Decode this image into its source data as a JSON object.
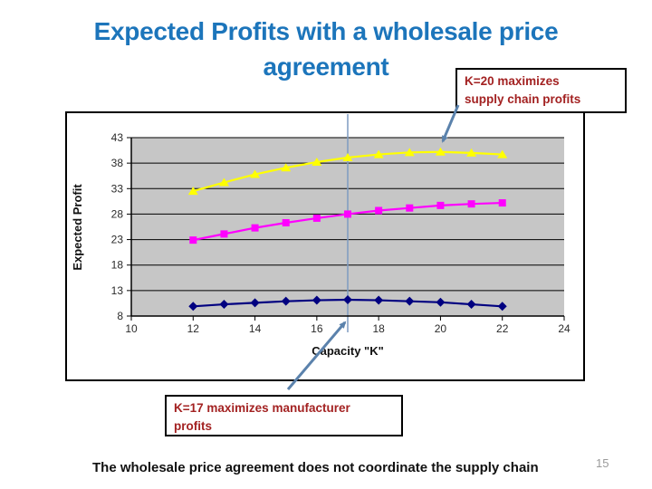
{
  "slide": {
    "title_lines": [
      "Expected Profits with a wholesale price",
      "agreement"
    ],
    "title_color": "#1C75BB",
    "callout_text_color": "#A32222",
    "leader_color": "#5B82AC",
    "footer_text": "The wholesale price agreement does not coordinate the supply chain",
    "page_number": "15"
  },
  "callouts": {
    "k20": {
      "lines": [
        "K=20 maximizes",
        "supply chain profits"
      ]
    },
    "k17": {
      "lines": [
        "K=17 maximizes manufacturer",
        "profits"
      ]
    }
  },
  "chart_data": {
    "type": "line",
    "x": [
      12,
      13,
      14,
      15,
      16,
      17,
      18,
      19,
      20,
      21,
      22
    ],
    "series": [
      {
        "name": "yellow-triangles",
        "marker": "triangle",
        "color": "#FFFF00",
        "values": [
          32.5,
          34.2,
          35.8,
          37.1,
          38.2,
          39.1,
          39.7,
          40.1,
          40.2,
          40.0,
          39.7
        ]
      },
      {
        "name": "magenta-squares",
        "marker": "square",
        "color": "#FF00FF",
        "values": [
          22.9,
          24.1,
          25.3,
          26.3,
          27.2,
          28.0,
          28.7,
          29.2,
          29.7,
          30.0,
          30.2
        ]
      },
      {
        "name": "navy-diamonds",
        "marker": "diamond",
        "color": "#000080",
        "values": [
          9.9,
          10.3,
          10.6,
          10.9,
          11.1,
          11.2,
          11.1,
          10.9,
          10.7,
          10.3,
          9.9
        ]
      }
    ],
    "xlabel": "Capacity \"K\"",
    "ylabel": "Expected Profit",
    "x_ticks": [
      10,
      12,
      14,
      16,
      18,
      20,
      22,
      24
    ],
    "y_ticks": [
      8,
      13,
      18,
      23,
      28,
      33,
      38,
      43
    ],
    "xlim": [
      10,
      24
    ],
    "ylim": [
      8,
      43
    ],
    "plot_bg": "#C6C6C6",
    "grid": true,
    "legend": "none",
    "reference_line_x": 17,
    "reference_line_color": "#7E9CC0"
  }
}
